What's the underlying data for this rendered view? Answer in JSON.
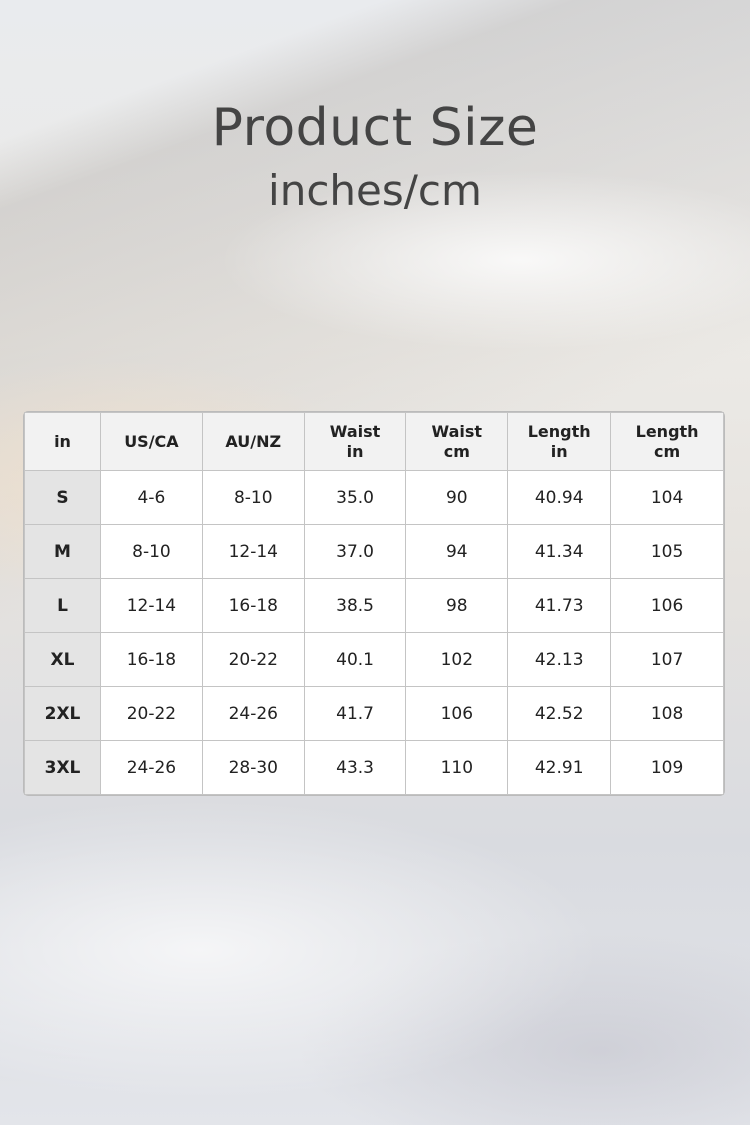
{
  "title": "Product Size",
  "subtitle": "inches/cm",
  "table": {
    "headers": [
      [
        "in"
      ],
      [
        "US/CA"
      ],
      [
        "AU/NZ"
      ],
      [
        "Waist",
        "in"
      ],
      [
        "Waist",
        "cm"
      ],
      [
        "Length",
        "in"
      ],
      [
        "Length",
        "cm"
      ]
    ],
    "rows": [
      [
        "S",
        "4-6",
        "8-10",
        "35.0",
        "90",
        "40.94",
        "104"
      ],
      [
        "M",
        "8-10",
        "12-14",
        "37.0",
        "94",
        "41.34",
        "105"
      ],
      [
        "L",
        "12-14",
        "16-18",
        "38.5",
        "98",
        "41.73",
        "106"
      ],
      [
        "XL",
        "16-18",
        "20-22",
        "40.1",
        "102",
        "42.13",
        "107"
      ],
      [
        "2XL",
        "20-22",
        "24-26",
        "41.7",
        "106",
        "42.52",
        "108"
      ],
      [
        "3XL",
        "24-26",
        "28-30",
        "43.3",
        "110",
        "42.91",
        "109"
      ]
    ]
  }
}
